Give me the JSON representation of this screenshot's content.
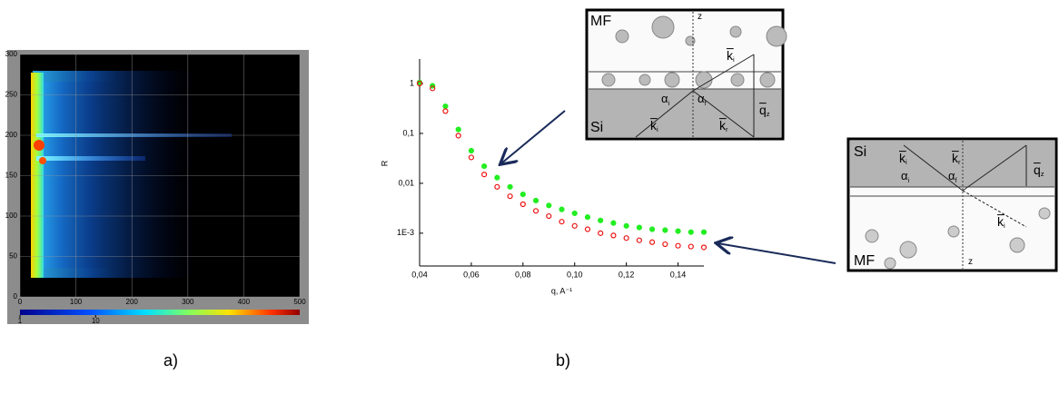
{
  "chart_data": [
    {
      "type": "heatmap",
      "xlim": [
        0,
        500
      ],
      "xticks": [
        0,
        100,
        200,
        300,
        400,
        500
      ],
      "ylim": [
        0,
        300
      ],
      "yticks": [
        0,
        50,
        100,
        150,
        200,
        250,
        300
      ],
      "colorbar": {
        "ticks": [
          1,
          10
        ],
        "lim": [
          1,
          5000
        ],
        "log": true
      }
    },
    {
      "type": "scatter",
      "xlabel": "q, A⁻¹",
      "ylabel": "R",
      "log_y": true,
      "xlim": [
        0.04,
        0.15
      ],
      "xticks": [
        {
          "value": 0.04,
          "label": "0,04"
        },
        {
          "value": 0.06,
          "label": "0,06"
        },
        {
          "value": 0.08,
          "label": "0,08"
        },
        {
          "value": 0.1,
          "label": "0,10"
        },
        {
          "value": 0.12,
          "label": "0,12"
        },
        {
          "value": 0.14,
          "label": "0,14"
        }
      ],
      "ylim": [
        0.00022,
        3.1
      ],
      "yticks": [
        {
          "value": 1,
          "label": "1"
        },
        {
          "value": 0.1,
          "label": "0,1"
        },
        {
          "value": 0.01,
          "label": "0,01"
        },
        {
          "value": 0.001,
          "label": "1E-3"
        }
      ],
      "series": [
        {
          "color": "#22ee22",
          "x": [
            0.04,
            0.045,
            0.05,
            0.055,
            0.06,
            0.065,
            0.07,
            0.075,
            0.08,
            0.085,
            0.09,
            0.095,
            0.1,
            0.105,
            0.11,
            0.115,
            0.12,
            0.125,
            0.13,
            0.135,
            0.14,
            0.145,
            0.15
          ],
          "values": [
            1.05,
            0.9,
            0.35,
            0.12,
            0.045,
            0.022,
            0.013,
            0.0085,
            0.006,
            0.0045,
            0.0036,
            0.003,
            0.0025,
            0.0021,
            0.0018,
            0.0016,
            0.0014,
            0.0013,
            0.0012,
            0.00115,
            0.0011,
            0.00105,
            0.00105
          ]
        },
        {
          "color": "#ee1111",
          "x": [
            0.04,
            0.045,
            0.05,
            0.055,
            0.06,
            0.065,
            0.07,
            0.075,
            0.08,
            0.085,
            0.09,
            0.095,
            0.1,
            0.105,
            0.11,
            0.115,
            0.12,
            0.125,
            0.13,
            0.135,
            0.14,
            0.145,
            0.15
          ],
          "values": [
            1.0,
            0.8,
            0.28,
            0.09,
            0.033,
            0.015,
            0.0085,
            0.0055,
            0.0038,
            0.0028,
            0.0022,
            0.0017,
            0.0014,
            0.0012,
            0.001,
            0.0009,
            0.0008,
            0.00072,
            0.00066,
            0.0006,
            0.00056,
            0.00054,
            0.00052
          ]
        }
      ]
    }
  ],
  "panels": [
    "a)",
    "b)"
  ],
  "diagrams": [
    {
      "labels": [
        {
          "text": "MF"
        },
        {
          "text": "z"
        },
        {
          "text": "k",
          "sub": "i",
          "bar": true
        },
        {
          "text": "α",
          "sub": "i"
        },
        {
          "text": "α",
          "sub": "f"
        },
        {
          "text": "Si"
        },
        {
          "text": "k",
          "sub": "i",
          "bar": true
        },
        {
          "text": "k",
          "sub": "r",
          "bar": true
        },
        {
          "text": "q",
          "sub": "z",
          "bar": true
        }
      ]
    },
    {
      "labels": [
        {
          "text": "Si"
        },
        {
          "text": "k",
          "sub": "i",
          "bar": true
        },
        {
          "text": "k",
          "sub": "r",
          "bar": true
        },
        {
          "text": "q",
          "sub": "z",
          "bar": true
        },
        {
          "text": "α",
          "sub": "i"
        },
        {
          "text": "α",
          "sub": "f"
        },
        {
          "text": "k",
          "sub": "i",
          "bar": true
        },
        {
          "text": "MF"
        },
        {
          "text": "z"
        }
      ]
    }
  ]
}
